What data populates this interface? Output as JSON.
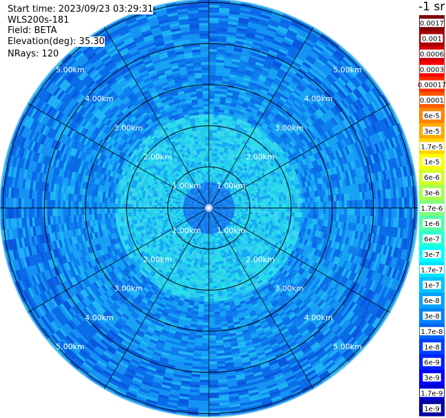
{
  "header": {
    "start_time": "Start time: 2023/09/23 03:29:31",
    "instrument": "WLS200s-181",
    "field": "Field: BETA",
    "elevation": "Elevation(deg): 35.30",
    "nrays": "NRays: 120"
  },
  "colorbar": {
    "units": "-1 sr",
    "labels": [
      "0.0017",
      "0.001",
      "0.0006",
      "0.0003",
      "0.00017",
      "0.0001",
      "6e-5",
      "3e-5",
      "1.7e-5",
      "1e-5",
      "6e-6",
      "3e-6",
      "1.7e-6",
      "1e-6",
      "6e-7",
      "3e-7",
      "1.7e-7",
      "1e-7",
      "6e-8",
      "3e-8",
      "1.7e-8",
      "1e-8",
      "6e-9",
      "3e-9",
      "1.7e-9",
      "1e-9"
    ],
    "colors": [
      "#7f0000",
      "#a80000",
      "#d40000",
      "#fc0000",
      "#ff2c00",
      "#ff5800",
      "#ff8400",
      "#ffab00",
      "#ffd700",
      "#feff00",
      "#d4ff23",
      "#a8ff4f",
      "#7fff7b",
      "#56ffa7",
      "#2bffd3",
      "#00fffe",
      "#00e4ff",
      "#00c4ff",
      "#00a4ff",
      "#0084ff",
      "#0064ff",
      "#0040ff",
      "#0020ff",
      "#0000fc",
      "#0000ce",
      "#00009f"
    ]
  },
  "chart_data": {
    "type": "ppi",
    "field": "BETA",
    "elevation_deg": 35.3,
    "nrays": 120,
    "range_rings_km": [
      1,
      2,
      3,
      4,
      5
    ],
    "max_range_km": 5.0,
    "ring_labels": [
      "1.00km",
      "2.00km",
      "3.00km",
      "4.00km",
      "5.00km"
    ],
    "spoke_angles_deg": [
      0,
      30,
      60,
      90,
      120,
      150,
      180,
      210,
      240,
      270,
      300,
      330
    ],
    "color_scale": "log",
    "value_range": [
      1e-09,
      0.0017
    ]
  }
}
